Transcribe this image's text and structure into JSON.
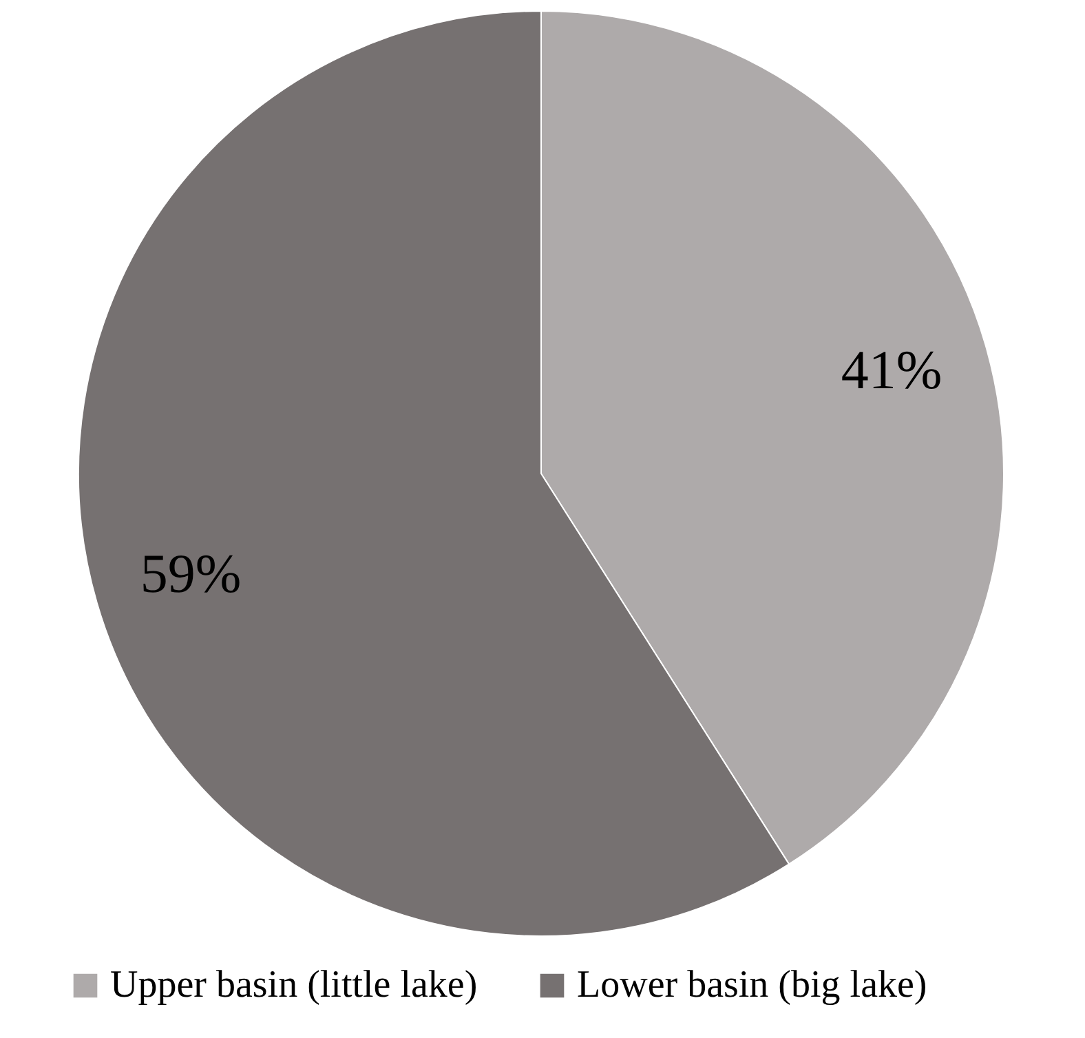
{
  "chart_data": {
    "type": "pie",
    "categories": [
      "Upper basin (little lake)",
      "Lower basin (big lake)"
    ],
    "values": [
      41,
      59
    ],
    "value_labels": [
      "41%",
      "59%"
    ],
    "colors": [
      "#aeaaaa",
      "#767171"
    ],
    "legend": "bottom"
  }
}
